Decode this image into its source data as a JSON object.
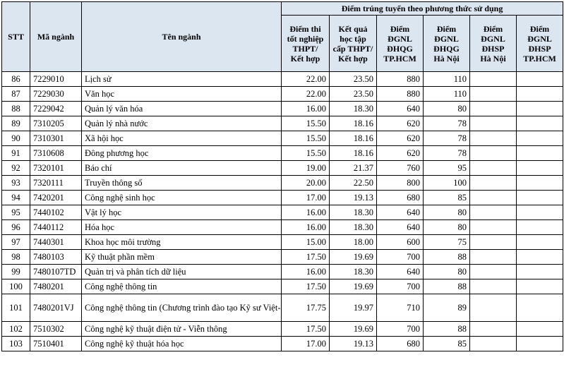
{
  "headers": {
    "stt": "STT",
    "code": "Mã ngành",
    "name": "Tên ngành",
    "group": "Điểm trúng tuyển theo phương thức sử dụng",
    "methods": [
      "Điểm thi\ntốt nghiệp\nTHPT/\nKết hợp",
      "Kết quả\nhọc tập\ncấp THPT/\nKết hợp",
      "Điểm\nĐGNL\nĐHQG\nTP.HCM",
      "Điểm\nĐGNL\nĐHQG\nHà Nội",
      "Điểm\nĐGNL\nĐHSP\nHà Nội",
      "Điểm\nĐGNL\nĐHSP\nTP.HCM"
    ]
  },
  "rows": [
    {
      "stt": "86",
      "code": "7229010",
      "name": "Lịch sử",
      "s1": "22.00",
      "s2": "23.50",
      "s3": "880",
      "s4": "110",
      "s5": "",
      "s6": ""
    },
    {
      "stt": "87",
      "code": "7229030",
      "name": "Văn học",
      "s1": "22.00",
      "s2": "23.50",
      "s3": "880",
      "s4": "110",
      "s5": "",
      "s6": ""
    },
    {
      "stt": "88",
      "code": "7229042",
      "name": "Quản lý văn hóa",
      "s1": "16.00",
      "s2": "18.30",
      "s3": "640",
      "s4": "80",
      "s5": "",
      "s6": ""
    },
    {
      "stt": "89",
      "code": "7310205",
      "name": "Quản lý nhà nước",
      "s1": "15.50",
      "s2": "18.16",
      "s3": "620",
      "s4": "78",
      "s5": "",
      "s6": ""
    },
    {
      "stt": "90",
      "code": "7310301",
      "name": "Xã hội học",
      "s1": "15.50",
      "s2": "18.16",
      "s3": "620",
      "s4": "78",
      "s5": "",
      "s6": ""
    },
    {
      "stt": "91",
      "code": "7310608",
      "name": "Đông phương học",
      "s1": "15.50",
      "s2": "18.16",
      "s3": "620",
      "s4": "78",
      "s5": "",
      "s6": ""
    },
    {
      "stt": "92",
      "code": "7320101",
      "name": "Báo chí",
      "s1": "19.00",
      "s2": "21.37",
      "s3": "760",
      "s4": "95",
      "s5": "",
      "s6": ""
    },
    {
      "stt": "93",
      "code": "7320111",
      "name": "Truyền thông số",
      "s1": "20.00",
      "s2": "22.50",
      "s3": "800",
      "s4": "100",
      "s5": "",
      "s6": ""
    },
    {
      "stt": "94",
      "code": "7420201",
      "name": "Công nghệ sinh học",
      "s1": "17.00",
      "s2": "19.13",
      "s3": "680",
      "s4": "85",
      "s5": "",
      "s6": ""
    },
    {
      "stt": "95",
      "code": "7440102",
      "name": "Vật lý học",
      "s1": "16.00",
      "s2": "18.30",
      "s3": "640",
      "s4": "80",
      "s5": "",
      "s6": ""
    },
    {
      "stt": "96",
      "code": "7440112",
      "name": "Hóa học",
      "s1": "16.00",
      "s2": "18.30",
      "s3": "640",
      "s4": "80",
      "s5": "",
      "s6": ""
    },
    {
      "stt": "97",
      "code": "7440301",
      "name": "Khoa học môi trường",
      "s1": "15.00",
      "s2": "18.00",
      "s3": "600",
      "s4": "75",
      "s5": "",
      "s6": ""
    },
    {
      "stt": "98",
      "code": "7480103",
      "name": "Kỹ thuật phần mềm",
      "s1": "17.50",
      "s2": "19.69",
      "s3": "700",
      "s4": "88",
      "s5": "",
      "s6": ""
    },
    {
      "stt": "99",
      "code": "7480107TD",
      "name": "Quản trị và phân tích dữ liệu",
      "s1": "16.00",
      "s2": "18.30",
      "s3": "640",
      "s4": "80",
      "s5": "",
      "s6": ""
    },
    {
      "stt": "100",
      "code": "7480201",
      "name": "Công nghệ thông tin",
      "s1": "17.50",
      "s2": "19.69",
      "s3": "700",
      "s4": "88",
      "s5": "",
      "s6": ""
    },
    {
      "stt": "101",
      "code": "7480201VJ",
      "name": "Công nghệ thông tin\n(Chương trình đào tạo Kỹ sư Việt-Nhật)",
      "s1": "17.75",
      "s2": "19.97",
      "s3": "710",
      "s4": "89",
      "s5": "",
      "s6": ""
    },
    {
      "stt": "102",
      "code": "7510302",
      "name": "Công nghệ kỹ thuật điện tử - Viễn thông",
      "s1": "17.50",
      "s2": "19.69",
      "s3": "700",
      "s4": "88",
      "s5": "",
      "s6": ""
    },
    {
      "stt": "103",
      "code": "7510401",
      "name": "Công nghệ kỹ thuật hóa học",
      "s1": "17.00",
      "s2": "19.13",
      "s3": "680",
      "s4": "85",
      "s5": "",
      "s6": ""
    }
  ]
}
